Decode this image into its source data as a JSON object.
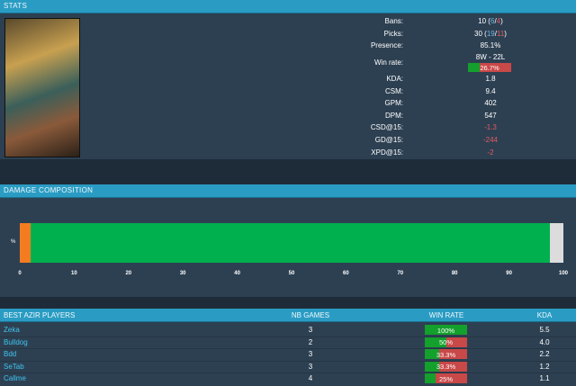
{
  "stats": {
    "title": "STATS",
    "rows": [
      {
        "label": "Bans:",
        "parts": [
          {
            "text": "10 ("
          },
          {
            "text": "6",
            "color": "#6fb3e0"
          },
          {
            "text": "/"
          },
          {
            "text": "4",
            "color": "#e05a5a"
          },
          {
            "text": ")"
          }
        ]
      },
      {
        "label": "Picks:",
        "parts": [
          {
            "text": "30 ("
          },
          {
            "text": "19",
            "color": "#6fb3e0"
          },
          {
            "text": "/"
          },
          {
            "text": "11",
            "color": "#e05a5a"
          },
          {
            "text": ")"
          }
        ]
      },
      {
        "label": "Presence:",
        "value": "85.1%"
      },
      {
        "label": "Win rate:",
        "record": "8W - 22L",
        "rate": {
          "value": 26.7,
          "label": "26.7%"
        }
      },
      {
        "label": "KDA:",
        "value": "1.8"
      },
      {
        "label": "CSM:",
        "value": "9.4"
      },
      {
        "label": "GPM:",
        "value": "402"
      },
      {
        "label": "DPM:",
        "value": "547"
      },
      {
        "label": "CSD@15:",
        "value": "-1.3",
        "color": "#e05a5a"
      },
      {
        "label": "GD@15:",
        "value": "-244",
        "color": "#e05a5a"
      },
      {
        "label": "XPD@15:",
        "value": "-2",
        "color": "#e05a5a"
      }
    ]
  },
  "chart_data": {
    "type": "stacked_bar",
    "title": "DAMAGE COMPOSITION",
    "categories": [
      "%"
    ],
    "series": [
      {
        "color": "#f47c20",
        "values": [
          2
        ]
      },
      {
        "color": "#00b04f",
        "values": [
          95.5
        ]
      },
      {
        "color": "#dcdcdc",
        "values": [
          2.5
        ]
      }
    ],
    "xlim": [
      0,
      100
    ],
    "xticks": [
      0,
      10,
      20,
      30,
      40,
      50,
      60,
      70,
      80,
      90,
      100
    ]
  },
  "players": {
    "header": [
      "BEST AZIR PLAYERS",
      "NB GAMES",
      "WIN RATE",
      "KDA"
    ],
    "rows": [
      {
        "name": "Zeka",
        "games": 3,
        "win_rate": {
          "value": 100,
          "label": "100%"
        },
        "kda": "5.5"
      },
      {
        "name": "Bulldog",
        "games": 2,
        "win_rate": {
          "value": 50,
          "label": "50%"
        },
        "kda": "4.0"
      },
      {
        "name": "Bdd",
        "games": 3,
        "win_rate": {
          "value": 33.3,
          "label": "33.3%"
        },
        "kda": "2.2"
      },
      {
        "name": "SeTab",
        "games": 3,
        "win_rate": {
          "value": 33.3,
          "label": "33.3%"
        },
        "kda": "1.2"
      },
      {
        "name": "Callme",
        "games": 4,
        "win_rate": {
          "value": 25,
          "label": "25%"
        },
        "kda": "1.1"
      }
    ]
  }
}
